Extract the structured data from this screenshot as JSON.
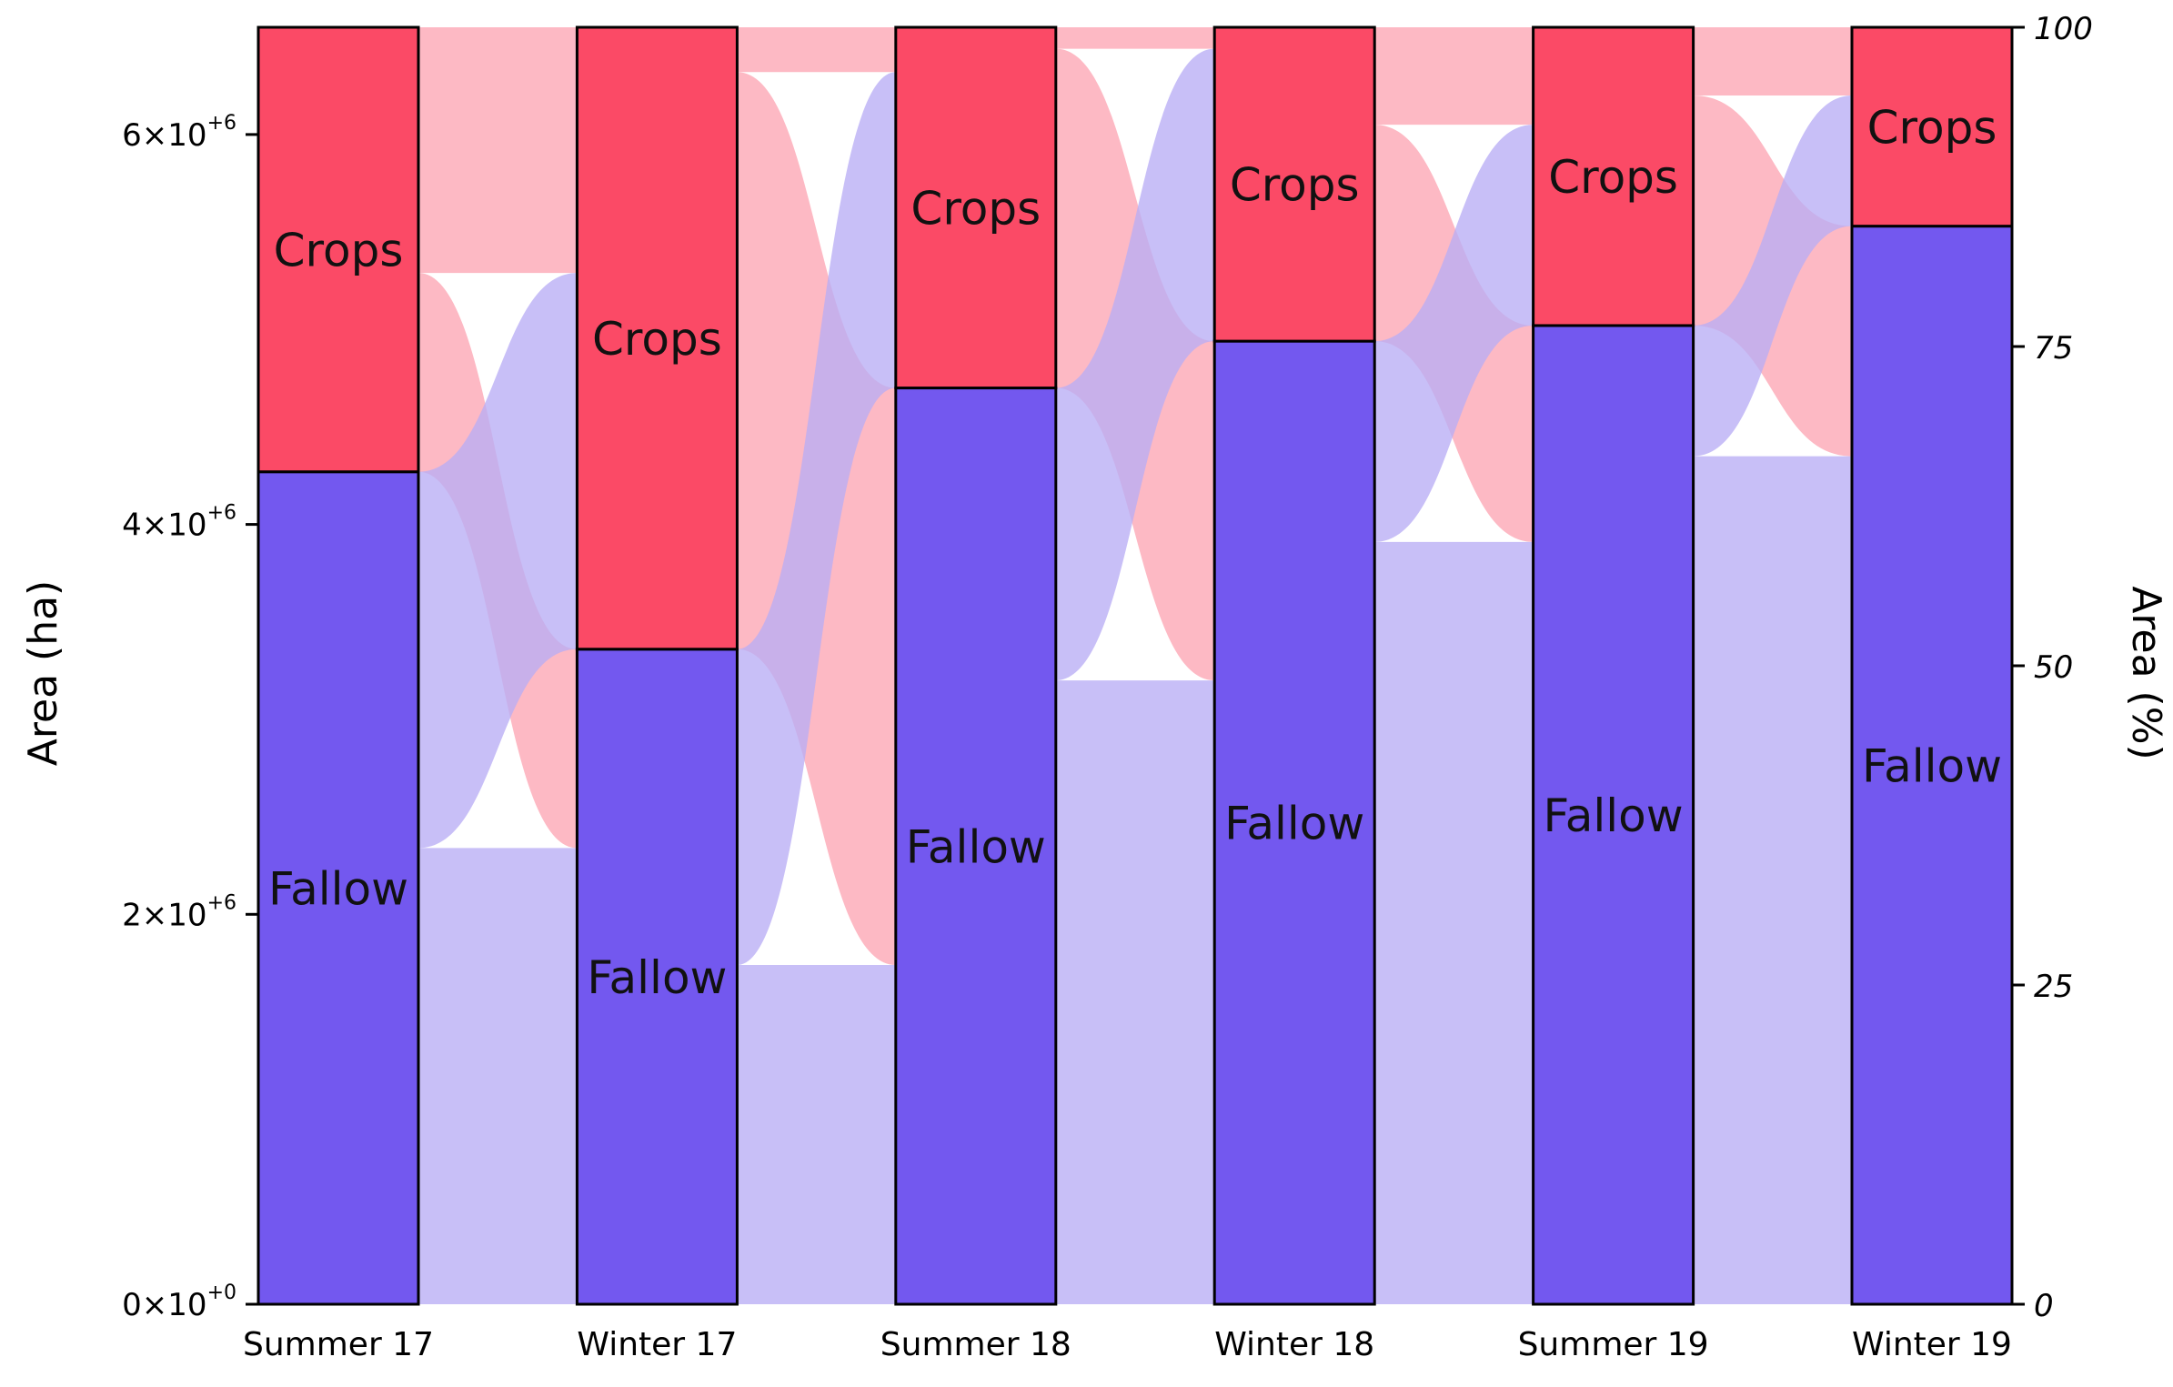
{
  "chart_data": {
    "type": "alluvial",
    "categories": [
      "Summer 17",
      "Winter 17",
      "Summer 18",
      "Winter 18",
      "Summer 19",
      "Winter 19"
    ],
    "series": [
      {
        "name": "Fallow",
        "values": [
          4270000,
          3360000,
          4700000,
          4940000,
          5020000,
          5530000
        ]
      },
      {
        "name": "Crops",
        "values": [
          2280000,
          3190000,
          1850000,
          1610000,
          1530000,
          1020000
        ]
      }
    ],
    "flows": [
      {
        "from": "Summer 17",
        "to": "Winter 17",
        "fallow_to_fallow": 2340000,
        "fallow_to_crops": 1930000,
        "crops_to_fallow": 1020000,
        "crops_to_crops": 1260000
      },
      {
        "from": "Winter 17",
        "to": "Summer 18",
        "fallow_to_fallow": 1740000,
        "fallow_to_crops": 1620000,
        "crops_to_fallow": 2960000,
        "crops_to_crops": 230000
      },
      {
        "from": "Summer 18",
        "to": "Winter 18",
        "fallow_to_fallow": 3200000,
        "fallow_to_crops": 1500000,
        "crops_to_fallow": 1740000,
        "crops_to_crops": 110000
      },
      {
        "from": "Winter 18",
        "to": "Summer 19",
        "fallow_to_fallow": 3910000,
        "fallow_to_crops": 1030000,
        "crops_to_fallow": 1110000,
        "crops_to_crops": 500000
      },
      {
        "from": "Summer 19",
        "to": "Winter 19",
        "fallow_to_fallow": 4350000,
        "fallow_to_crops": 670000,
        "crops_to_fallow": 1180000,
        "crops_to_crops": 350000
      }
    ],
    "colors": {
      "fallow": "#7358ef",
      "crops": "#fb4a66",
      "fallow_flow": "#b8adf5",
      "crops_flow": "#fca5b3"
    },
    "ylabel": "Area (ha)",
    "ylabel_right": "Area (%)",
    "ylim": [
      0,
      6550000
    ],
    "yticks": [
      0,
      2000000,
      4000000,
      6000000
    ],
    "ytick_labels": [
      {
        "mantissa": "0",
        "exp": "+0"
      },
      {
        "mantissa": "2",
        "exp": "+6"
      },
      {
        "mantissa": "4",
        "exp": "+6"
      },
      {
        "mantissa": "6",
        "exp": "+6"
      }
    ],
    "yticks_right": [
      0,
      25,
      50,
      75,
      100
    ],
    "ylim_right": [
      0,
      100
    ],
    "grid": false
  }
}
